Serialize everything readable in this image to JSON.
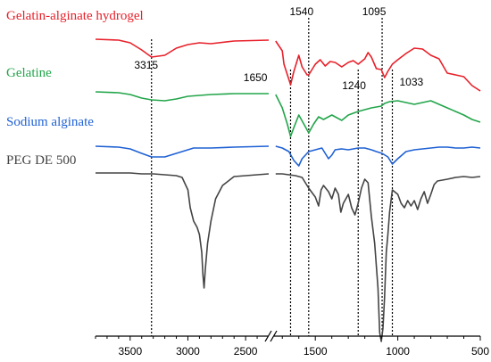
{
  "chart_data": {
    "type": "line",
    "title": "",
    "xlabel": "",
    "ylabel": "",
    "x_axis": {
      "reversed": true,
      "broken": true,
      "segments": [
        {
          "from": 3800,
          "to": 2300
        },
        {
          "from": 1750,
          "to": 500
        }
      ],
      "tick_labels": [
        "3500",
        "3000",
        "2500",
        "1500",
        "1000",
        "500"
      ]
    },
    "series": [
      {
        "name": "Gelatin-alginate hydrogel",
        "color": "#e8202a",
        "points": [
          [
            3800,
            -2
          ],
          [
            3600,
            -3
          ],
          [
            3500,
            -6
          ],
          [
            3400,
            -14
          ],
          [
            3315,
            -22
          ],
          [
            3200,
            -20
          ],
          [
            3100,
            -12
          ],
          [
            3000,
            -8
          ],
          [
            2900,
            -6
          ],
          [
            2800,
            -7
          ],
          [
            2600,
            -4
          ],
          [
            2300,
            -3
          ],
          [
            1740,
            -4
          ],
          [
            1700,
            -15
          ],
          [
            1690,
            -30
          ],
          [
            1650,
            -53
          ],
          [
            1630,
            -38
          ],
          [
            1600,
            -20
          ],
          [
            1580,
            -33
          ],
          [
            1550,
            -42
          ],
          [
            1540,
            -42
          ],
          [
            1500,
            -30
          ],
          [
            1470,
            -25
          ],
          [
            1440,
            -32
          ],
          [
            1410,
            -27
          ],
          [
            1380,
            -28
          ],
          [
            1340,
            -33
          ],
          [
            1300,
            -28
          ],
          [
            1270,
            -26
          ],
          [
            1240,
            -30
          ],
          [
            1200,
            -24
          ],
          [
            1180,
            -17
          ],
          [
            1160,
            -22
          ],
          [
            1130,
            -35
          ],
          [
            1100,
            -36
          ],
          [
            1080,
            -45
          ],
          [
            1060,
            -38
          ],
          [
            1033,
            -30
          ],
          [
            1000,
            -25
          ],
          [
            950,
            -18
          ],
          [
            900,
            -12
          ],
          [
            850,
            -13
          ],
          [
            800,
            -20
          ],
          [
            750,
            -24
          ],
          [
            700,
            -40
          ],
          [
            650,
            -42
          ],
          [
            600,
            -44
          ],
          [
            550,
            -54
          ],
          [
            500,
            -60
          ]
        ]
      },
      {
        "name": "Gelatine",
        "color": "#22a54a",
        "points": [
          [
            3800,
            -2
          ],
          [
            3600,
            -3
          ],
          [
            3500,
            -5
          ],
          [
            3400,
            -9
          ],
          [
            3315,
            -11
          ],
          [
            3200,
            -12
          ],
          [
            3100,
            -10
          ],
          [
            3000,
            -7
          ],
          [
            2900,
            -6
          ],
          [
            2800,
            -5
          ],
          [
            2600,
            -4
          ],
          [
            2300,
            -4
          ],
          [
            1740,
            -5
          ],
          [
            1700,
            -20
          ],
          [
            1670,
            -38
          ],
          [
            1650,
            -52
          ],
          [
            1630,
            -42
          ],
          [
            1600,
            -28
          ],
          [
            1570,
            -38
          ],
          [
            1540,
            -48
          ],
          [
            1510,
            -38
          ],
          [
            1480,
            -30
          ],
          [
            1450,
            -33
          ],
          [
            1400,
            -28
          ],
          [
            1340,
            -34
          ],
          [
            1300,
            -28
          ],
          [
            1240,
            -24
          ],
          [
            1200,
            -22
          ],
          [
            1160,
            -20
          ],
          [
            1100,
            -18
          ],
          [
            1080,
            -15
          ],
          [
            1050,
            -13
          ],
          [
            1000,
            -12
          ],
          [
            950,
            -14
          ],
          [
            900,
            -16
          ],
          [
            850,
            -14
          ],
          [
            800,
            -12
          ],
          [
            750,
            -16
          ],
          [
            700,
            -20
          ],
          [
            650,
            -24
          ],
          [
            600,
            -28
          ],
          [
            550,
            -33
          ],
          [
            500,
            -36
          ]
        ]
      },
      {
        "name": "Sodium alginate",
        "color": "#1f61d4",
        "points": [
          [
            3800,
            -2
          ],
          [
            3600,
            -3
          ],
          [
            3500,
            -5
          ],
          [
            3400,
            -10
          ],
          [
            3315,
            -14
          ],
          [
            3200,
            -14
          ],
          [
            3100,
            -10
          ],
          [
            3000,
            -6
          ],
          [
            2950,
            -4
          ],
          [
            2900,
            -4
          ],
          [
            2800,
            -4
          ],
          [
            2600,
            -3
          ],
          [
            2300,
            -2
          ],
          [
            1740,
            -2
          ],
          [
            1700,
            -4
          ],
          [
            1660,
            -8
          ],
          [
            1630,
            -18
          ],
          [
            1600,
            -24
          ],
          [
            1580,
            -16
          ],
          [
            1540,
            -8
          ],
          [
            1500,
            -6
          ],
          [
            1460,
            -4
          ],
          [
            1440,
            -10
          ],
          [
            1420,
            -16
          ],
          [
            1400,
            -12
          ],
          [
            1380,
            -6
          ],
          [
            1340,
            -5
          ],
          [
            1300,
            -6
          ],
          [
            1240,
            -4
          ],
          [
            1200,
            -4
          ],
          [
            1160,
            -6
          ],
          [
            1130,
            -8
          ],
          [
            1095,
            -10
          ],
          [
            1060,
            -14
          ],
          [
            1033,
            -22
          ],
          [
            1000,
            -16
          ],
          [
            950,
            -8
          ],
          [
            900,
            -6
          ],
          [
            850,
            -5
          ],
          [
            800,
            -4
          ],
          [
            750,
            -3
          ],
          [
            700,
            -3
          ],
          [
            650,
            -4
          ],
          [
            600,
            -4
          ],
          [
            550,
            -3
          ],
          [
            500,
            -4
          ]
        ]
      },
      {
        "name": "PEG DE 500",
        "color": "#444444",
        "points": [
          [
            3800,
            -1
          ],
          [
            3600,
            -1
          ],
          [
            3500,
            -1
          ],
          [
            3400,
            -2
          ],
          [
            3300,
            -2
          ],
          [
            3200,
            -3
          ],
          [
            3100,
            -4
          ],
          [
            3050,
            -6
          ],
          [
            3000,
            -20
          ],
          [
            2980,
            -40
          ],
          [
            2950,
            -55
          ],
          [
            2920,
            -62
          ],
          [
            2900,
            -70
          ],
          [
            2880,
            -90
          ],
          [
            2870,
            -115
          ],
          [
            2860,
            -130
          ],
          [
            2850,
            -110
          ],
          [
            2830,
            -80
          ],
          [
            2800,
            -55
          ],
          [
            2760,
            -30
          ],
          [
            2700,
            -15
          ],
          [
            2600,
            -5
          ],
          [
            2300,
            -2
          ],
          [
            1740,
            -2
          ],
          [
            1700,
            -2
          ],
          [
            1660,
            -3
          ],
          [
            1620,
            -4
          ],
          [
            1580,
            -6
          ],
          [
            1540,
            -18
          ],
          [
            1500,
            -28
          ],
          [
            1480,
            -38
          ],
          [
            1465,
            -20
          ],
          [
            1450,
            -15
          ],
          [
            1420,
            -22
          ],
          [
            1400,
            -30
          ],
          [
            1380,
            -18
          ],
          [
            1360,
            -25
          ],
          [
            1345,
            -45
          ],
          [
            1330,
            -35
          ],
          [
            1300,
            -25
          ],
          [
            1280,
            -40
          ],
          [
            1260,
            -48
          ],
          [
            1240,
            -35
          ],
          [
            1220,
            -18
          ],
          [
            1200,
            -8
          ],
          [
            1180,
            -12
          ],
          [
            1160,
            -50
          ],
          [
            1140,
            -80
          ],
          [
            1120,
            -130
          ],
          [
            1110,
            -180
          ],
          [
            1100,
            -190
          ],
          [
            1090,
            -175
          ],
          [
            1080,
            -140
          ],
          [
            1070,
            -90
          ],
          [
            1060,
            -70
          ],
          [
            1050,
            -45
          ],
          [
            1033,
            -20
          ],
          [
            1000,
            -25
          ],
          [
            980,
            -35
          ],
          [
            960,
            -40
          ],
          [
            940,
            -32
          ],
          [
            920,
            -38
          ],
          [
            900,
            -32
          ],
          [
            880,
            -42
          ],
          [
            860,
            -30
          ],
          [
            840,
            -22
          ],
          [
            820,
            -35
          ],
          [
            800,
            -25
          ],
          [
            780,
            -14
          ],
          [
            760,
            -10
          ],
          [
            700,
            -8
          ],
          [
            650,
            -6
          ],
          [
            600,
            -5
          ],
          [
            550,
            -6
          ],
          [
            500,
            -5
          ]
        ]
      }
    ],
    "annotations": [
      "3315",
      "1650",
      "1540",
      "1240",
      "1095",
      "1033"
    ],
    "reference_lines": [
      3315,
      1650,
      1540,
      1240,
      1095,
      1033
    ],
    "grid": false,
    "legend": "left, text labels above each curve"
  }
}
